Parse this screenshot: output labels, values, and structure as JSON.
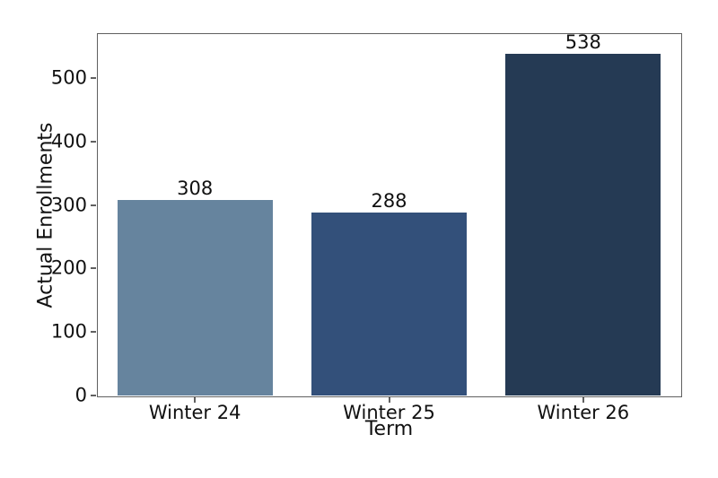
{
  "chart_data": {
    "type": "bar",
    "title": "",
    "xlabel": "Term",
    "ylabel": "Actual Enrollments",
    "categories": [
      "Winter 24",
      "Winter 25",
      "Winter 26"
    ],
    "values": [
      308,
      288,
      538
    ],
    "bar_labels": [
      "308",
      "288",
      "538"
    ],
    "bar_colors": [
      "#66849E",
      "#33507A",
      "#253A54"
    ],
    "yticks": [
      0,
      100,
      200,
      300,
      400,
      500
    ],
    "ylim": [
      0,
      569
    ],
    "bar_width_frac": 0.8,
    "grid": false,
    "legend": null,
    "background_color": "#FFFFFF",
    "spine_color": "#606060",
    "text_color": "#111111"
  }
}
